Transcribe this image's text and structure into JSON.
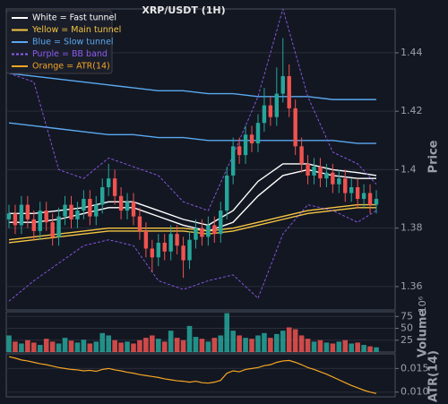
{
  "chart_data": [
    {
      "type": "candlestick",
      "title": "XRP/USDT (1H)",
      "ylabel": "Price",
      "ylim": [
        1.352,
        1.455
      ],
      "yticks": [
        1.36,
        1.38,
        1.4,
        1.42,
        1.44
      ],
      "grid": true,
      "up_color": "#26a69a",
      "down_color": "#ef5350",
      "open": [
        1.383,
        1.385,
        1.381,
        1.388,
        1.383,
        1.379,
        1.386,
        1.382,
        1.377,
        1.384,
        1.388,
        1.383,
        1.386,
        1.39,
        1.384,
        1.388,
        1.394,
        1.397,
        1.391,
        1.386,
        1.389,
        1.384,
        1.379,
        1.373,
        1.37,
        1.375,
        1.372,
        1.378,
        1.374,
        1.369,
        1.376,
        1.38,
        1.377,
        1.381,
        1.378,
        1.386,
        1.398,
        1.408,
        1.405,
        1.412,
        1.409,
        1.416,
        1.422,
        1.418,
        1.426,
        1.432,
        1.421,
        1.408,
        1.402,
        1.398,
        1.401,
        1.397,
        1.399,
        1.395,
        1.397,
        1.392,
        1.394,
        1.39,
        1.392,
        1.388
      ],
      "high": [
        1.388,
        1.388,
        1.391,
        1.391,
        1.386,
        1.389,
        1.389,
        1.385,
        1.387,
        1.391,
        1.391,
        1.389,
        1.393,
        1.393,
        1.391,
        1.397,
        1.402,
        1.4,
        1.394,
        1.392,
        1.392,
        1.387,
        1.382,
        1.376,
        1.378,
        1.378,
        1.381,
        1.381,
        1.377,
        1.379,
        1.383,
        1.383,
        1.384,
        1.384,
        1.389,
        1.401,
        1.411,
        1.411,
        1.415,
        1.415,
        1.419,
        1.428,
        1.425,
        1.435,
        1.445,
        1.436,
        1.424,
        1.411,
        1.405,
        1.404,
        1.404,
        1.402,
        1.402,
        1.4,
        1.4,
        1.397,
        1.397,
        1.395,
        1.395,
        1.393
      ],
      "low": [
        1.38,
        1.378,
        1.378,
        1.38,
        1.376,
        1.376,
        1.379,
        1.374,
        1.374,
        1.381,
        1.38,
        1.38,
        1.383,
        1.381,
        1.381,
        1.385,
        1.391,
        1.388,
        1.383,
        1.383,
        1.381,
        1.376,
        1.37,
        1.365,
        1.367,
        1.369,
        1.369,
        1.371,
        1.363,
        1.366,
        1.373,
        1.374,
        1.374,
        1.375,
        1.375,
        1.383,
        1.395,
        1.402,
        1.402,
        1.406,
        1.406,
        1.413,
        1.415,
        1.415,
        1.423,
        1.418,
        1.405,
        1.399,
        1.395,
        1.395,
        1.394,
        1.394,
        1.392,
        1.392,
        1.389,
        1.389,
        1.387,
        1.387,
        1.385,
        1.385
      ],
      "close": [
        1.385,
        1.381,
        1.388,
        1.383,
        1.379,
        1.386,
        1.382,
        1.377,
        1.384,
        1.388,
        1.383,
        1.386,
        1.39,
        1.384,
        1.388,
        1.394,
        1.397,
        1.391,
        1.386,
        1.389,
        1.384,
        1.379,
        1.373,
        1.37,
        1.375,
        1.372,
        1.378,
        1.374,
        1.369,
        1.376,
        1.38,
        1.377,
        1.381,
        1.378,
        1.386,
        1.398,
        1.408,
        1.405,
        1.412,
        1.409,
        1.416,
        1.422,
        1.418,
        1.426,
        1.432,
        1.421,
        1.408,
        1.402,
        1.398,
        1.401,
        1.397,
        1.399,
        1.395,
        1.397,
        1.392,
        1.394,
        1.39,
        1.392,
        1.388,
        1.39
      ],
      "lines": {
        "x": [
          0,
          4,
          8,
          12,
          16,
          20,
          24,
          28,
          32,
          36,
          40,
          44,
          48,
          52,
          56,
          59
        ],
        "series": [
          {
            "name": "White = Fast tunnel",
            "color": "#ffffff",
            "dashed": false,
            "values": [
              1.385,
              1.385,
              1.386,
              1.387,
              1.389,
              1.389,
              1.386,
              1.383,
              1.381,
              1.386,
              1.396,
              1.402,
              1.402,
              1.4,
              1.399,
              1.398
            ],
            "values_lower": [
              1.382,
              1.382,
              1.383,
              1.385,
              1.387,
              1.387,
              1.384,
              1.381,
              1.379,
              1.382,
              1.391,
              1.398,
              1.4,
              1.398,
              1.397,
              1.397
            ]
          },
          {
            "name": "Yellow = Main tunnel",
            "color": "#f5c542",
            "dashed": false,
            "values": [
              1.376,
              1.377,
              1.378,
              1.379,
              1.38,
              1.38,
              1.38,
              1.38,
              1.379,
              1.38,
              1.382,
              1.384,
              1.386,
              1.387,
              1.388,
              1.388
            ],
            "values_lower": [
              1.375,
              1.376,
              1.377,
              1.378,
              1.379,
              1.379,
              1.379,
              1.379,
              1.378,
              1.379,
              1.381,
              1.383,
              1.385,
              1.386,
              1.387,
              1.387
            ]
          },
          {
            "name": "Blue = Slow tunnel",
            "color": "#5aa9f0",
            "dashed": false,
            "values": [
              1.433,
              1.432,
              1.431,
              1.43,
              1.429,
              1.428,
              1.427,
              1.427,
              1.426,
              1.426,
              1.425,
              1.425,
              1.425,
              1.424,
              1.424,
              1.424
            ],
            "values_lower": [
              1.416,
              1.415,
              1.414,
              1.413,
              1.412,
              1.412,
              1.411,
              1.411,
              1.41,
              1.41,
              1.41,
              1.41,
              1.41,
              1.41,
              1.409,
              1.409
            ]
          },
          {
            "name": "Purple = BB band",
            "color": "#8e5cf0",
            "dashed": true,
            "values": [
              1.433,
              1.43,
              1.4,
              1.397,
              1.404,
              1.401,
              1.398,
              1.389,
              1.386,
              1.405,
              1.425,
              1.455,
              1.425,
              1.406,
              1.402,
              1.395
            ],
            "values_lower": [
              1.355,
              1.362,
              1.368,
              1.374,
              1.376,
              1.374,
              1.362,
              1.359,
              1.362,
              1.364,
              1.356,
              1.378,
              1.388,
              1.386,
              1.382,
              1.386
            ]
          }
        ]
      }
    },
    {
      "type": "bar",
      "ylabel": "Volume",
      "offset_label": "10⁶",
      "ylim": [
        0,
        85
      ],
      "yticks": [
        25,
        50,
        75
      ],
      "values": [
        35,
        22,
        18,
        25,
        20,
        15,
        28,
        22,
        18,
        30,
        24,
        20,
        26,
        18,
        22,
        40,
        35,
        25,
        20,
        22,
        18,
        25,
        30,
        35,
        28,
        22,
        45,
        30,
        25,
        55,
        32,
        28,
        22,
        30,
        35,
        82,
        45,
        35,
        30,
        28,
        35,
        40,
        30,
        38,
        45,
        52,
        48,
        35,
        28,
        22,
        25,
        20,
        18,
        22,
        25,
        18,
        20,
        15,
        12,
        10
      ]
    },
    {
      "type": "line",
      "ylabel": "ATR(14)",
      "ylim": [
        0.009,
        0.0181
      ],
      "yticks": [
        0.015,
        {
          "value": 0.01,
          "label": "0.010"
        }
      ],
      "series": [
        {
          "name": "Orange = ATR(14)",
          "color": "#f5a623",
          "values": [
            0.0175,
            0.0172,
            0.0168,
            0.0166,
            0.0163,
            0.016,
            0.0158,
            0.0155,
            0.0152,
            0.015,
            0.0148,
            0.0147,
            0.0145,
            0.0146,
            0.0144,
            0.0148,
            0.015,
            0.0147,
            0.0145,
            0.0142,
            0.014,
            0.0137,
            0.0135,
            0.0133,
            0.0131,
            0.0128,
            0.0126,
            0.0124,
            0.0123,
            0.0121,
            0.0123,
            0.012,
            0.0119,
            0.0121,
            0.0125,
            0.014,
            0.0145,
            0.0143,
            0.0148,
            0.015,
            0.0152,
            0.0156,
            0.0158,
            0.0163,
            0.0166,
            0.0167,
            0.0163,
            0.0158,
            0.0152,
            0.0148,
            0.0143,
            0.0138,
            0.0132,
            0.0126,
            0.012,
            0.0114,
            0.0109,
            0.0104,
            0.01,
            0.0097
          ]
        }
      ]
    }
  ]
}
